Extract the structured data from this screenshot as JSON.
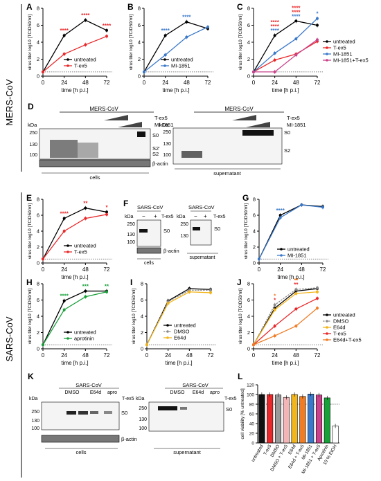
{
  "sections": {
    "mers": "MERS-CoV",
    "sars": "SARS-CoV"
  },
  "common": {
    "ylabel": "virus titer log10 [TCID50/ml]",
    "xlabel": "time [h p.i.]",
    "xticks": [
      "0",
      "24",
      "48",
      "72"
    ],
    "yticks": [
      "0",
      "2",
      "4",
      "6",
      "8"
    ]
  },
  "colors": {
    "black": "#000000",
    "red": "#e8282a",
    "blue": "#3a78c9",
    "pink": "#c8428c",
    "green": "#18a03a",
    "gold": "#f2b51a",
    "grey": "#8a8a8a",
    "orange": "#f07d25"
  },
  "panels": {
    "A": {
      "label": "A",
      "legend": [
        "untreated",
        "T-ex5"
      ]
    },
    "B": {
      "label": "B",
      "legend": [
        "untreated",
        "MI-1851"
      ]
    },
    "C": {
      "label": "C",
      "legend": [
        "untreated",
        "T-ex5",
        "MI-1851",
        "MI-1851+T-ex5"
      ]
    },
    "D": {
      "label": "D",
      "virus": "MERS-CoV",
      "rows": [
        "T-ex5",
        "MI-1851"
      ],
      "kda": "kDa",
      "mw_cells": [
        "250",
        "130",
        "100"
      ],
      "mw_sup": [
        "250",
        "130",
        "100"
      ],
      "bands_cells": [
        "S0",
        "S2'",
        "S2"
      ],
      "bands_sup": [
        "S0",
        "S2"
      ],
      "actin": "β-actin",
      "cap_cells": "cells",
      "cap_sup": "supernatant"
    },
    "E": {
      "label": "E",
      "legend": [
        "untreated",
        "T-ex5"
      ]
    },
    "F": {
      "label": "F",
      "virus": "SARS-CoV",
      "row": "T-ex5",
      "minus": "−",
      "plus": "+",
      "kda": "kDa",
      "mw": [
        "250",
        "130",
        "100"
      ],
      "mw_sup": [
        "250",
        "130"
      ],
      "band": "S0",
      "actin": "β-actin",
      "cap_cells": "cells",
      "cap_sup": "supernatant"
    },
    "G": {
      "label": "G",
      "legend": [
        "untreated",
        "MI-1851"
      ]
    },
    "H": {
      "label": "H",
      "legend": [
        "untreated",
        "aprotinin"
      ]
    },
    "I": {
      "label": "I",
      "legend": [
        "untreated",
        "DMSO",
        "E64d"
      ]
    },
    "J": {
      "label": "J",
      "legend": [
        "untreated",
        "DMSO",
        "E64d",
        "T-ex5",
        "E64d+T-ex5"
      ]
    },
    "K": {
      "label": "K",
      "virus": "SARS-CoV",
      "groups": [
        "DMSO",
        "E64d",
        "apro"
      ],
      "row": "T-ex5",
      "kda": "kDa",
      "mw": [
        "250",
        "130",
        "100"
      ],
      "mw_sup": [
        "250",
        "130",
        "100"
      ],
      "band": "S0",
      "actin": "β-actin",
      "cap_cells": "cells",
      "cap_sup": "supernatant"
    },
    "L": {
      "label": "L",
      "ylabel": "cell viability [% untreated]",
      "yticks": [
        "0",
        "20",
        "40",
        "60",
        "80",
        "100",
        "120"
      ]
    }
  },
  "chart_data": [
    {
      "panel": "A",
      "type": "line",
      "x": [
        0,
        24,
        48,
        72
      ],
      "ylim": [
        0,
        8
      ],
      "xlabel": "time [h p.i.]",
      "ylabel": "virus titer log10 [TCID50/ml]",
      "series": [
        {
          "name": "untreated",
          "color": "black",
          "values": [
            0.5,
            4.8,
            6.6,
            5.4
          ]
        },
        {
          "name": "T-ex5",
          "color": "red",
          "values": [
            0.5,
            2.6,
            3.7,
            4.7
          ]
        }
      ],
      "annotations": [
        {
          "x": 24,
          "text": "****",
          "color": "red"
        },
        {
          "x": 48,
          "text": "****",
          "color": "red"
        },
        {
          "x": 72,
          "text": "****",
          "color": "red"
        }
      ]
    },
    {
      "panel": "B",
      "type": "line",
      "x": [
        0,
        24,
        48,
        72
      ],
      "ylim": [
        0,
        8
      ],
      "xlabel": "time [h p.i.]",
      "ylabel": "virus titer log10 [TCID50/ml]",
      "series": [
        {
          "name": "untreated",
          "color": "black",
          "values": [
            0.5,
            4.8,
            6.4,
            5.6
          ]
        },
        {
          "name": "MI-1851",
          "color": "blue",
          "values": [
            0.5,
            2.5,
            4.6,
            5.8
          ]
        }
      ],
      "annotations": [
        {
          "x": 24,
          "text": "****",
          "color": "blue"
        },
        {
          "x": 48,
          "text": "****",
          "color": "blue"
        }
      ]
    },
    {
      "panel": "C",
      "type": "line",
      "x": [
        0,
        24,
        48,
        72
      ],
      "ylim": [
        0,
        8
      ],
      "xlabel": "time [h p.i.]",
      "ylabel": "virus titer log10 [TCID50/ml]",
      "series": [
        {
          "name": "untreated",
          "color": "black",
          "values": [
            0.5,
            4.8,
            6.5,
            6.0
          ]
        },
        {
          "name": "T-ex5",
          "color": "red",
          "values": [
            0.5,
            1.9,
            2.6,
            4.1
          ]
        },
        {
          "name": "MI-1851",
          "color": "blue",
          "values": [
            0.5,
            2.7,
            4.4,
            6.8
          ]
        },
        {
          "name": "MI-1851+T-ex5",
          "color": "pink",
          "values": [
            0.5,
            0.5,
            2.5,
            4.3
          ]
        }
      ],
      "annotations": [
        {
          "x": 24,
          "text": "****",
          "color": "blue"
        },
        {
          "x": 24,
          "text": "****",
          "color": "red"
        },
        {
          "x": 24,
          "text": "****",
          "color": "red"
        },
        {
          "x": 48,
          "text": "****",
          "color": "blue"
        },
        {
          "x": 48,
          "text": "****",
          "color": "red"
        },
        {
          "x": 48,
          "text": "****",
          "color": "red"
        },
        {
          "x": 72,
          "text": "*",
          "color": "blue"
        }
      ]
    },
    {
      "panel": "E",
      "type": "line",
      "x": [
        0,
        24,
        48,
        72
      ],
      "ylim": [
        0,
        8
      ],
      "xlabel": "time [h p.i.]",
      "ylabel": "virus titer log10 [TCID50/ml]",
      "series": [
        {
          "name": "untreated",
          "color": "black",
          "values": [
            0.5,
            5.6,
            6.9,
            6.4
          ]
        },
        {
          "name": "T-ex5",
          "color": "red",
          "values": [
            0.5,
            4.0,
            5.6,
            6.1
          ]
        }
      ],
      "annotations": [
        {
          "x": 24,
          "text": "****",
          "color": "red"
        },
        {
          "x": 48,
          "text": "**",
          "color": "red"
        },
        {
          "x": 72,
          "text": "*",
          "color": "red"
        }
      ]
    },
    {
      "panel": "G",
      "type": "line",
      "x": [
        0,
        24,
        48,
        72
      ],
      "ylim": [
        0,
        8
      ],
      "xlabel": "time [h p.i.]",
      "ylabel": "virus titer log10 [TCID50/ml]",
      "series": [
        {
          "name": "untreated",
          "color": "black",
          "values": [
            0.5,
            6.0,
            7.3,
            7.1
          ]
        },
        {
          "name": "MI-1851",
          "color": "blue",
          "values": [
            0.5,
            5.7,
            7.3,
            7.0
          ]
        }
      ],
      "annotations": [
        {
          "x": 24,
          "text": "****",
          "color": "blue"
        }
      ]
    },
    {
      "panel": "H",
      "type": "line",
      "x": [
        0,
        24,
        48,
        72
      ],
      "ylim": [
        0,
        8
      ],
      "xlabel": "time [h p.i.]",
      "ylabel": "virus titer log10 [TCID50/ml]",
      "series": [
        {
          "name": "untreated",
          "color": "black",
          "values": [
            0.5,
            5.9,
            7.1,
            7.1
          ]
        },
        {
          "name": "aprotinin",
          "color": "green",
          "values": [
            0.5,
            4.8,
            6.4,
            7.0
          ]
        }
      ],
      "annotations": [
        {
          "x": 24,
          "text": "****",
          "color": "green"
        },
        {
          "x": 48,
          "text": "***",
          "color": "green"
        },
        {
          "x": 72,
          "text": "**",
          "color": "green"
        }
      ]
    },
    {
      "panel": "I",
      "type": "line",
      "x": [
        0,
        24,
        48,
        72
      ],
      "ylim": [
        0,
        8
      ],
      "xlabel": "time [h p.i.]",
      "ylabel": "virus titer log10 [TCID50/ml]",
      "series": [
        {
          "name": "untreated",
          "color": "black",
          "values": [
            0.5,
            5.9,
            7.4,
            7.3
          ]
        },
        {
          "name": "DMSO",
          "color": "grey",
          "dashed": true,
          "values": [
            0.5,
            5.8,
            7.2,
            7.2
          ]
        },
        {
          "name": "E64d",
          "color": "gold",
          "values": [
            0.5,
            5.6,
            7.0,
            6.9
          ]
        }
      ],
      "annotations": []
    },
    {
      "panel": "J",
      "type": "line",
      "x": [
        0,
        24,
        48,
        72
      ],
      "ylim": [
        0,
        8
      ],
      "xlabel": "time [h p.i.]",
      "ylabel": "virus titer log10 [TCID50/ml]",
      "series": [
        {
          "name": "untreated",
          "color": "black",
          "values": [
            0.5,
            5.0,
            7.1,
            7.4
          ]
        },
        {
          "name": "DMSO",
          "color": "grey",
          "dashed": true,
          "values": [
            0.5,
            5.4,
            7.3,
            7.5
          ]
        },
        {
          "name": "E64d",
          "color": "gold",
          "values": [
            0.5,
            4.8,
            6.8,
            7.0
          ]
        },
        {
          "name": "T-ex5",
          "color": "red",
          "values": [
            0.5,
            2.8,
            4.9,
            6.2
          ]
        },
        {
          "name": "E64d+T-ex5",
          "color": "orange",
          "values": [
            0.5,
            1.6,
            2.8,
            5.0
          ]
        }
      ],
      "annotations": [
        {
          "x": 24,
          "text": "*",
          "color": "red"
        },
        {
          "x": 24,
          "text": "*",
          "color": "orange"
        },
        {
          "x": 48,
          "text": "**",
          "color": "red"
        },
        {
          "x": 48,
          "text": "**",
          "color": "orange"
        }
      ]
    },
    {
      "panel": "L",
      "type": "bar",
      "ylim": [
        0,
        120
      ],
      "ylabel": "cell viability [% untreated]",
      "categories": [
        "untreated",
        "T-ex5",
        "DMSO",
        "DMSO + T-ex5",
        "E64d",
        "E64d + T-ex5",
        "MI-1851",
        "MI-1851 + T-ex5",
        "Aprotinin",
        "10 % EtOH"
      ],
      "values": [
        100,
        100,
        99,
        94,
        100,
        96,
        101,
        99,
        93,
        35
      ],
      "colors": [
        "#111111",
        "#e8282a",
        "#9a9a9a",
        "#f3b5b5",
        "#f2b51a",
        "#f07d25",
        "#3a78c9",
        "#c8428c",
        "#18a03a",
        "#ffffff"
      ],
      "reference_line": 80
    }
  ]
}
